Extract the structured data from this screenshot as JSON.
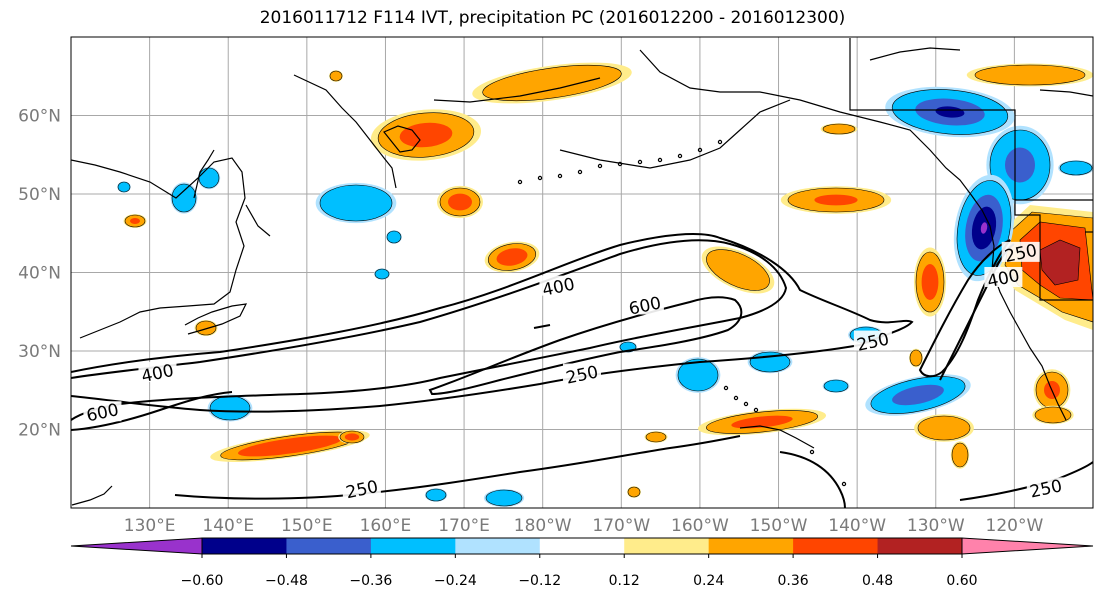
{
  "title": "2016011712 F114 IVT, precipitation PC (2016012200 - 2016012300)",
  "axes": {
    "lat_labels": [
      "20°N",
      "30°N",
      "40°N",
      "50°N",
      "60°N"
    ],
    "lon_labels": [
      "130°E",
      "140°E",
      "150°E",
      "160°E",
      "170°E",
      "180°W",
      "170°W",
      "160°W",
      "150°W",
      "140°W",
      "130°W",
      "120°W"
    ],
    "lon_range": [
      120,
      250
    ],
    "lat_range": [
      10,
      70
    ],
    "grid": true
  },
  "contours": {
    "field": "IVT",
    "levels": [
      "250",
      "400",
      "600"
    ],
    "labels": [
      {
        "text": "400",
        "lon": 182,
        "lat": 38.2
      },
      {
        "text": "600",
        "lon": 193,
        "lat": 35.8
      },
      {
        "text": "250",
        "lon": 185,
        "lat": 27.0
      },
      {
        "text": "250",
        "lon": 222,
        "lat": 31.2
      },
      {
        "text": "400",
        "lon": 131,
        "lat": 27.2
      },
      {
        "text": "600",
        "lon": 124,
        "lat": 22.2
      },
      {
        "text": "250",
        "lon": 157,
        "lat": 12.4
      },
      {
        "text": "250",
        "lon": 244,
        "lat": 12.5
      },
      {
        "text": "250",
        "lon": 240.8,
        "lat": 42.5
      },
      {
        "text": "400",
        "lon": 238.6,
        "lat": 39.3
      }
    ]
  },
  "colorbar": {
    "ticks": [
      "−0.60",
      "−0.48",
      "−0.36",
      "−0.24",
      "−0.12",
      "0.12",
      "0.24",
      "0.36",
      "0.48",
      "0.60"
    ],
    "colors": [
      "#9932cc",
      "#00008b",
      "#3a5fcd",
      "#00bfff",
      "#b0e2ff",
      "#ffffff",
      "#ffec8b",
      "#ffa500",
      "#ff4500",
      "#b22222",
      "#ff82ab"
    ]
  },
  "shading_colors": {
    "purple": "#9932cc",
    "navy": "#00008b",
    "royal": "#3a5fcd",
    "sky": "#00bfff",
    "light": "#b0e2ff",
    "yellow": "#ffec8b",
    "orange": "#ffa500",
    "redorange": "#ff4500",
    "firebrick": "#b22222",
    "pink": "#ff82ab"
  }
}
